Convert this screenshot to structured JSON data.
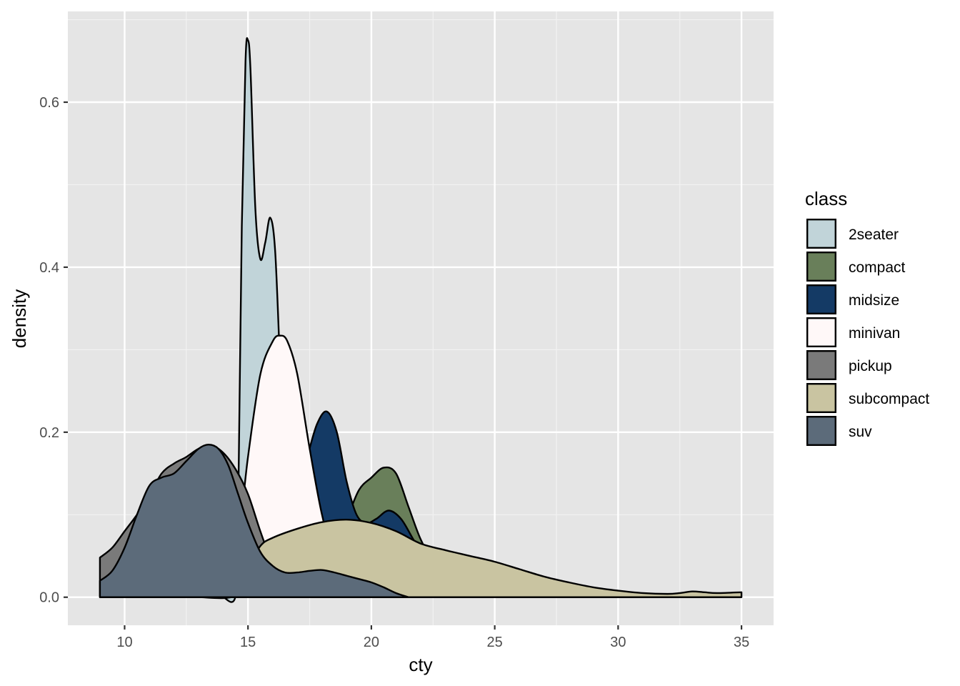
{
  "chart_data": {
    "type": "area",
    "subtype": "density",
    "xlabel": "cty",
    "ylabel": "density",
    "xlim": [
      7.7,
      36.3
    ],
    "ylim": [
      -0.034,
      0.71
    ],
    "x_ticks": [
      10,
      15,
      20,
      25,
      30,
      35
    ],
    "y_ticks": [
      0.0,
      0.2,
      0.4,
      0.6
    ],
    "x_tick_labels": [
      "10",
      "15",
      "20",
      "25",
      "30",
      "35"
    ],
    "y_tick_labels": [
      "0.0",
      "0.2",
      "0.4",
      "0.6"
    ],
    "grid": true,
    "legend": {
      "title": "class",
      "position": "right"
    },
    "series": [
      {
        "name": "2seater",
        "color": "#c1d4d9",
        "points": [
          [
            14.0,
            0.0
          ],
          [
            14.5,
            0.002
          ],
          [
            14.6,
            0.1
          ],
          [
            14.75,
            0.45
          ],
          [
            14.9,
            0.65
          ],
          [
            15.0,
            0.675
          ],
          [
            15.1,
            0.64
          ],
          [
            15.3,
            0.47
          ],
          [
            15.5,
            0.41
          ],
          [
            15.7,
            0.43
          ],
          [
            15.9,
            0.46
          ],
          [
            16.1,
            0.42
          ],
          [
            16.3,
            0.28
          ],
          [
            16.5,
            0.12
          ],
          [
            16.7,
            0.02
          ],
          [
            17.0,
            0.0
          ]
        ]
      },
      {
        "name": "compact",
        "color": "#697f5a",
        "points": [
          [
            17.0,
            0.0
          ],
          [
            18.0,
            0.03
          ],
          [
            19.0,
            0.095
          ],
          [
            19.5,
            0.13
          ],
          [
            20.0,
            0.145
          ],
          [
            20.5,
            0.157
          ],
          [
            21.0,
            0.15
          ],
          [
            21.5,
            0.11
          ],
          [
            22.0,
            0.07
          ],
          [
            22.5,
            0.045
          ],
          [
            23.5,
            0.01
          ],
          [
            25.0,
            0.0
          ]
        ]
      },
      {
        "name": "midsize",
        "color": "#143a65",
        "points": [
          [
            16.5,
            0.0
          ],
          [
            17.0,
            0.13
          ],
          [
            17.4,
            0.17
          ],
          [
            17.8,
            0.21
          ],
          [
            18.2,
            0.225
          ],
          [
            18.6,
            0.2
          ],
          [
            19.0,
            0.14
          ],
          [
            19.4,
            0.1
          ],
          [
            19.8,
            0.09
          ],
          [
            20.2,
            0.095
          ],
          [
            20.7,
            0.105
          ],
          [
            21.2,
            0.095
          ],
          [
            21.7,
            0.07
          ],
          [
            22.3,
            0.04
          ],
          [
            23.0,
            0.01
          ],
          [
            23.5,
            0.0
          ]
        ]
      },
      {
        "name": "minivan",
        "color": "#fff8f8",
        "points": [
          [
            14.0,
            0.0
          ],
          [
            14.6,
            0.07
          ],
          [
            15.0,
            0.17
          ],
          [
            15.5,
            0.27
          ],
          [
            16.0,
            0.31
          ],
          [
            16.3,
            0.317
          ],
          [
            16.6,
            0.31
          ],
          [
            17.0,
            0.27
          ],
          [
            17.5,
            0.18
          ],
          [
            18.0,
            0.1
          ],
          [
            18.5,
            0.05
          ],
          [
            19.5,
            0.01
          ],
          [
            20.0,
            0.0
          ]
        ]
      },
      {
        "name": "pickup",
        "color": "#7a7a7a",
        "points": [
          [
            9.0,
            0.048
          ],
          [
            9.5,
            0.06
          ],
          [
            10.0,
            0.08
          ],
          [
            10.5,
            0.1
          ],
          [
            11.0,
            0.123
          ],
          [
            11.5,
            0.15
          ],
          [
            12.0,
            0.162
          ],
          [
            12.5,
            0.17
          ],
          [
            13.0,
            0.18
          ],
          [
            13.5,
            0.184
          ],
          [
            14.0,
            0.175
          ],
          [
            14.5,
            0.155
          ],
          [
            15.0,
            0.125
          ],
          [
            15.5,
            0.08
          ],
          [
            16.0,
            0.04
          ],
          [
            16.5,
            0.012
          ],
          [
            17.0,
            0.0
          ]
        ]
      },
      {
        "name": "subcompact",
        "color": "#c9c4a1",
        "points": [
          [
            13.0,
            0.0
          ],
          [
            14.5,
            0.002
          ],
          [
            15.0,
            0.035
          ],
          [
            15.5,
            0.062
          ],
          [
            16.0,
            0.072
          ],
          [
            17.0,
            0.083
          ],
          [
            18.0,
            0.091
          ],
          [
            19.0,
            0.094
          ],
          [
            20.0,
            0.09
          ],
          [
            21.0,
            0.08
          ],
          [
            22.0,
            0.065
          ],
          [
            23.0,
            0.057
          ],
          [
            24.0,
            0.05
          ],
          [
            25.0,
            0.043
          ],
          [
            26.0,
            0.034
          ],
          [
            27.0,
            0.025
          ],
          [
            28.0,
            0.018
          ],
          [
            29.0,
            0.012
          ],
          [
            30.0,
            0.008
          ],
          [
            31.0,
            0.005
          ],
          [
            32.0,
            0.004
          ],
          [
            32.5,
            0.005
          ],
          [
            33.0,
            0.007
          ],
          [
            33.5,
            0.006
          ],
          [
            34.0,
            0.005
          ],
          [
            35.0,
            0.006
          ]
        ]
      },
      {
        "name": "suv",
        "color": "#5c6b7a",
        "points": [
          [
            9.0,
            0.02
          ],
          [
            9.5,
            0.032
          ],
          [
            10.0,
            0.06
          ],
          [
            10.5,
            0.1
          ],
          [
            11.0,
            0.135
          ],
          [
            11.5,
            0.145
          ],
          [
            12.0,
            0.15
          ],
          [
            12.5,
            0.165
          ],
          [
            13.0,
            0.18
          ],
          [
            13.4,
            0.185
          ],
          [
            13.8,
            0.18
          ],
          [
            14.2,
            0.16
          ],
          [
            14.6,
            0.125
          ],
          [
            15.0,
            0.09
          ],
          [
            15.5,
            0.055
          ],
          [
            16.0,
            0.038
          ],
          [
            16.5,
            0.03
          ],
          [
            17.0,
            0.03
          ],
          [
            17.5,
            0.032
          ],
          [
            18.0,
            0.033
          ],
          [
            18.5,
            0.03
          ],
          [
            19.0,
            0.026
          ],
          [
            19.5,
            0.022
          ],
          [
            20.0,
            0.018
          ],
          [
            20.5,
            0.012
          ],
          [
            21.0,
            0.005
          ],
          [
            21.5,
            0.0
          ]
        ]
      }
    ]
  }
}
